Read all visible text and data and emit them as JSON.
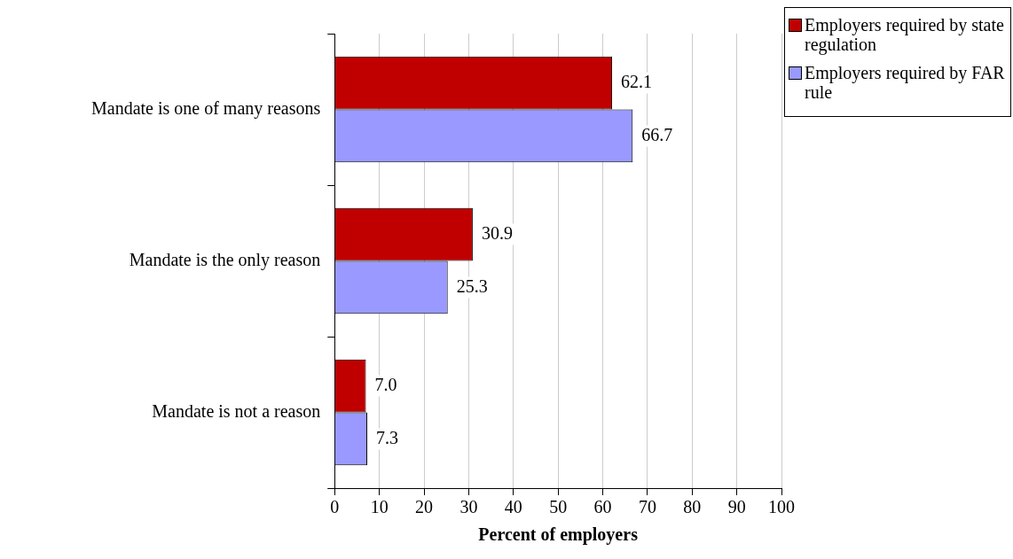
{
  "chart_data": {
    "type": "bar",
    "orientation": "horizontal",
    "xlabel": "Percent of employers",
    "categories": [
      "Mandate is one of many reasons",
      "Mandate is the only reason",
      "Mandate is not a reason"
    ],
    "series": [
      {
        "name": "Employers required by state regulation",
        "color": "#c00000",
        "values": [
          62.1,
          30.9,
          7.0
        ],
        "value_labels": [
          "62.1",
          "30.9",
          "7.0"
        ]
      },
      {
        "name": "Employers required by FAR rule",
        "color": "#9999ff",
        "values": [
          66.7,
          25.3,
          7.3
        ],
        "value_labels": [
          "66.7",
          "25.3",
          "7.3"
        ]
      }
    ],
    "xlim": [
      0,
      100
    ],
    "xticks": [
      0,
      10,
      20,
      30,
      40,
      50,
      60,
      70,
      80,
      90,
      100
    ],
    "grid": "x",
    "legend": "top right"
  }
}
